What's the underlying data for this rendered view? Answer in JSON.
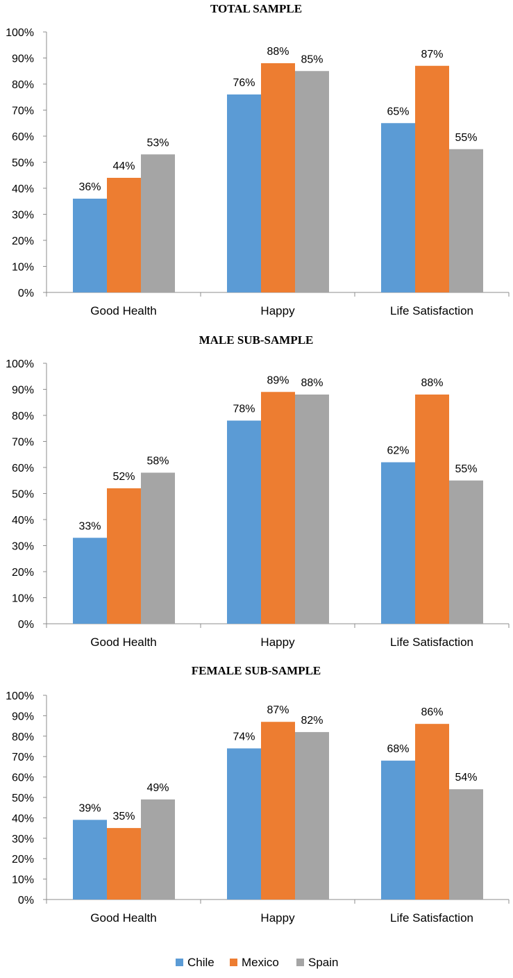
{
  "colors": {
    "Chile": "#5b9bd5",
    "Mexico": "#ed7d31",
    "Spain": "#a5a5a5"
  },
  "legend": [
    "Chile",
    "Mexico",
    "Spain"
  ],
  "chart_data": [
    {
      "type": "bar",
      "title": "TOTAL SAMPLE",
      "categories": [
        "Good Health",
        "Happy",
        "Life Satisfaction"
      ],
      "yticks": [
        "0%",
        "10%",
        "20%",
        "30%",
        "40%",
        "50%",
        "60%",
        "70%",
        "80%",
        "90%",
        "100%"
      ],
      "ylim": [
        0,
        100
      ],
      "series": [
        {
          "name": "Chile",
          "values": [
            36,
            76,
            65
          ],
          "labels": [
            "36%",
            "76%",
            "65%"
          ]
        },
        {
          "name": "Mexico",
          "values": [
            44,
            88,
            87
          ],
          "labels": [
            "44%",
            "88%",
            "87%"
          ]
        },
        {
          "name": "Spain",
          "values": [
            53,
            85,
            55
          ],
          "labels": [
            "53%",
            "85%",
            "55%"
          ]
        }
      ]
    },
    {
      "type": "bar",
      "title": "MALE SUB-SAMPLE",
      "categories": [
        "Good Health",
        "Happy",
        "Life Satisfaction"
      ],
      "yticks": [
        "0%",
        "10%",
        "20%",
        "30%",
        "40%",
        "50%",
        "60%",
        "70%",
        "80%",
        "90%",
        "100%"
      ],
      "ylim": [
        0,
        100
      ],
      "series": [
        {
          "name": "Chile",
          "values": [
            33,
            78,
            62
          ],
          "labels": [
            "33%",
            "78%",
            "62%"
          ]
        },
        {
          "name": "Mexico",
          "values": [
            52,
            89,
            88
          ],
          "labels": [
            "52%",
            "89%",
            "88%"
          ]
        },
        {
          "name": "Spain",
          "values": [
            58,
            88,
            55
          ],
          "labels": [
            "58%",
            "88%",
            "55%"
          ]
        }
      ]
    },
    {
      "type": "bar",
      "title": "FEMALE SUB-SAMPLE",
      "categories": [
        "Good Health",
        "Happy",
        "Life Satisfaction"
      ],
      "yticks": [
        "0%",
        "10%",
        "20%",
        "30%",
        "40%",
        "50%",
        "60%",
        "70%",
        "80%",
        "90%",
        "100%"
      ],
      "ylim": [
        0,
        100
      ],
      "series": [
        {
          "name": "Chile",
          "values": [
            39,
            74,
            68
          ],
          "labels": [
            "39%",
            "74%",
            "68%"
          ]
        },
        {
          "name": "Mexico",
          "values": [
            35,
            87,
            86
          ],
          "labels": [
            "35%",
            "87%",
            "86%"
          ]
        },
        {
          "name": "Spain",
          "values": [
            49,
            82,
            54
          ],
          "labels": [
            "49%",
            "82%",
            "54%"
          ]
        }
      ]
    }
  ]
}
